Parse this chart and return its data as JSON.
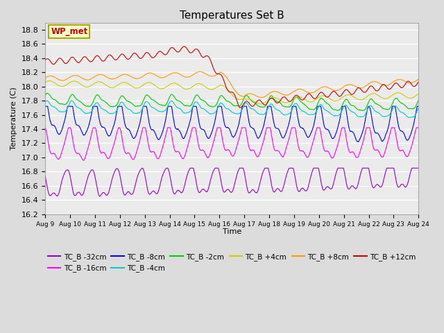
{
  "title": "Temperatures Set B",
  "xlabel": "Time",
  "ylabel": "Temperature (C)",
  "ylim": [
    16.2,
    18.9
  ],
  "x_tick_labels": [
    "Aug 9",
    "Aug 10",
    "Aug 11",
    "Aug 12",
    "Aug 13",
    "Aug 14",
    "Aug 15",
    "Aug 16",
    "Aug 17",
    "Aug 18",
    "Aug 19",
    "Aug 20",
    "Aug 21",
    "Aug 22",
    "Aug 23",
    "Aug 24"
  ],
  "legend_entries": [
    {
      "label": "TC_B -32cm",
      "color": "#9900cc"
    },
    {
      "label": "TC_B -16cm",
      "color": "#ff00ff"
    },
    {
      "label": "TC_B -8cm",
      "color": "#0000ff"
    },
    {
      "label": "TC_B -4cm",
      "color": "#00cccc"
    },
    {
      "label": "TC_B -2cm",
      "color": "#00cc00"
    },
    {
      "label": "TC_B +4cm",
      "color": "#cccc00"
    },
    {
      "label": "TC_B +8cm",
      "color": "#ff9900"
    },
    {
      "label": "TC_B +12cm",
      "color": "#cc0000"
    }
  ],
  "annotation_text": "WP_met",
  "annotation_color": "#cc0000",
  "annotation_bg": "#ffffcc",
  "background_color": "#dcdcdc",
  "plot_bg": "#ebebeb",
  "grid_color": "#ffffff",
  "n_points": 2160,
  "n_days": 15
}
